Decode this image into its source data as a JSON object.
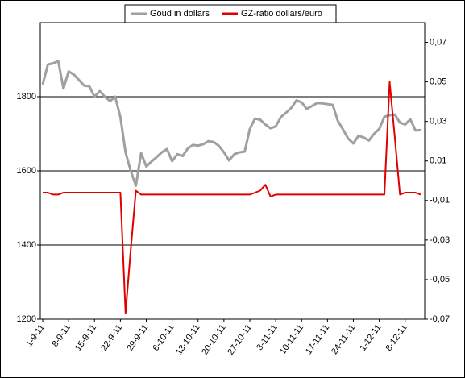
{
  "chart_data": {
    "type": "line",
    "categories": [
      "1-9-11",
      null,
      null,
      null,
      null,
      "8-9-11",
      null,
      null,
      null,
      null,
      "15-9-11",
      null,
      null,
      null,
      null,
      "22-9-11",
      null,
      null,
      null,
      null,
      "29-9-11",
      null,
      null,
      null,
      null,
      "6-10-11",
      null,
      null,
      null,
      null,
      "13-10-11",
      null,
      null,
      null,
      null,
      "20-10-11",
      null,
      null,
      null,
      null,
      "27-10-11",
      null,
      null,
      null,
      null,
      "3-11-11",
      null,
      null,
      null,
      null,
      "10-11-11",
      null,
      null,
      null,
      null,
      "17-11-11",
      null,
      null,
      null,
      null,
      "24-11-11",
      null,
      null,
      null,
      null,
      "1-12-11",
      null,
      null,
      null,
      null,
      "8-12-11",
      null,
      null,
      null
    ],
    "series": [
      {
        "name": "Goud in dollars",
        "color": "#a0a0a0",
        "axis": "y",
        "values": [
          1833,
          1887,
          1890,
          1896,
          1822,
          1868,
          1860,
          1845,
          1830,
          1828,
          1800,
          1815,
          1800,
          1788,
          1800,
          1745,
          1650,
          1600,
          1560,
          1648,
          1612,
          1625,
          1637,
          1650,
          1659,
          1626,
          1645,
          1640,
          1660,
          1670,
          1668,
          1672,
          1680,
          1678,
          1668,
          1650,
          1628,
          1645,
          1650,
          1652,
          1713,
          1741,
          1738,
          1725,
          1715,
          1720,
          1745,
          1757,
          1770,
          1790,
          1785,
          1767,
          1775,
          1783,
          1782,
          1780,
          1778,
          1735,
          1712,
          1687,
          1674,
          1695,
          1690,
          1682,
          1700,
          1713,
          1746,
          1750,
          1752,
          1730,
          1725,
          1739,
          1709,
          1710
        ]
      },
      {
        "name": "GZ-ratio dollars/euro",
        "color": "#e00000",
        "axis": "y2",
        "values": [
          -0.006,
          -0.006,
          -0.007,
          -0.007,
          -0.006,
          -0.006,
          -0.006,
          -0.006,
          -0.006,
          -0.006,
          -0.006,
          -0.006,
          -0.006,
          -0.006,
          -0.006,
          -0.006,
          -0.067,
          -0.035,
          -0.005,
          -0.007,
          -0.007,
          -0.007,
          -0.007,
          -0.007,
          -0.007,
          -0.007,
          -0.007,
          -0.007,
          -0.007,
          -0.007,
          -0.007,
          -0.007,
          -0.007,
          -0.007,
          -0.007,
          -0.007,
          -0.007,
          -0.007,
          -0.007,
          -0.007,
          -0.007,
          -0.006,
          -0.005,
          -0.002,
          -0.008,
          -0.007,
          -0.007,
          -0.007,
          -0.007,
          -0.007,
          -0.007,
          -0.007,
          -0.007,
          -0.007,
          -0.007,
          -0.007,
          -0.007,
          -0.007,
          -0.007,
          -0.007,
          -0.007,
          -0.007,
          -0.007,
          -0.007,
          -0.007,
          -0.007,
          -0.007,
          0.05,
          0.022,
          -0.007,
          -0.006,
          -0.006,
          -0.006,
          -0.007
        ]
      }
    ],
    "ylim": [
      1200,
      2000
    ],
    "yticks": [
      1200,
      1400,
      1600,
      1800
    ],
    "y2lim": [
      -0.07,
      0.08
    ],
    "y2ticks": [
      {
        "value": -0.07,
        "label": "-0,07"
      },
      {
        "value": -0.05,
        "label": "-0,05"
      },
      {
        "value": -0.03,
        "label": "-0,03"
      },
      {
        "value": -0.01,
        "label": "-0,01"
      },
      {
        "value": 0.01,
        "label": "0,01"
      },
      {
        "value": 0.03,
        "label": "0,03"
      },
      {
        "value": 0.05,
        "label": "0,05"
      },
      {
        "value": 0.07,
        "label": "0,07"
      }
    ],
    "grid": true,
    "legend": "top"
  }
}
